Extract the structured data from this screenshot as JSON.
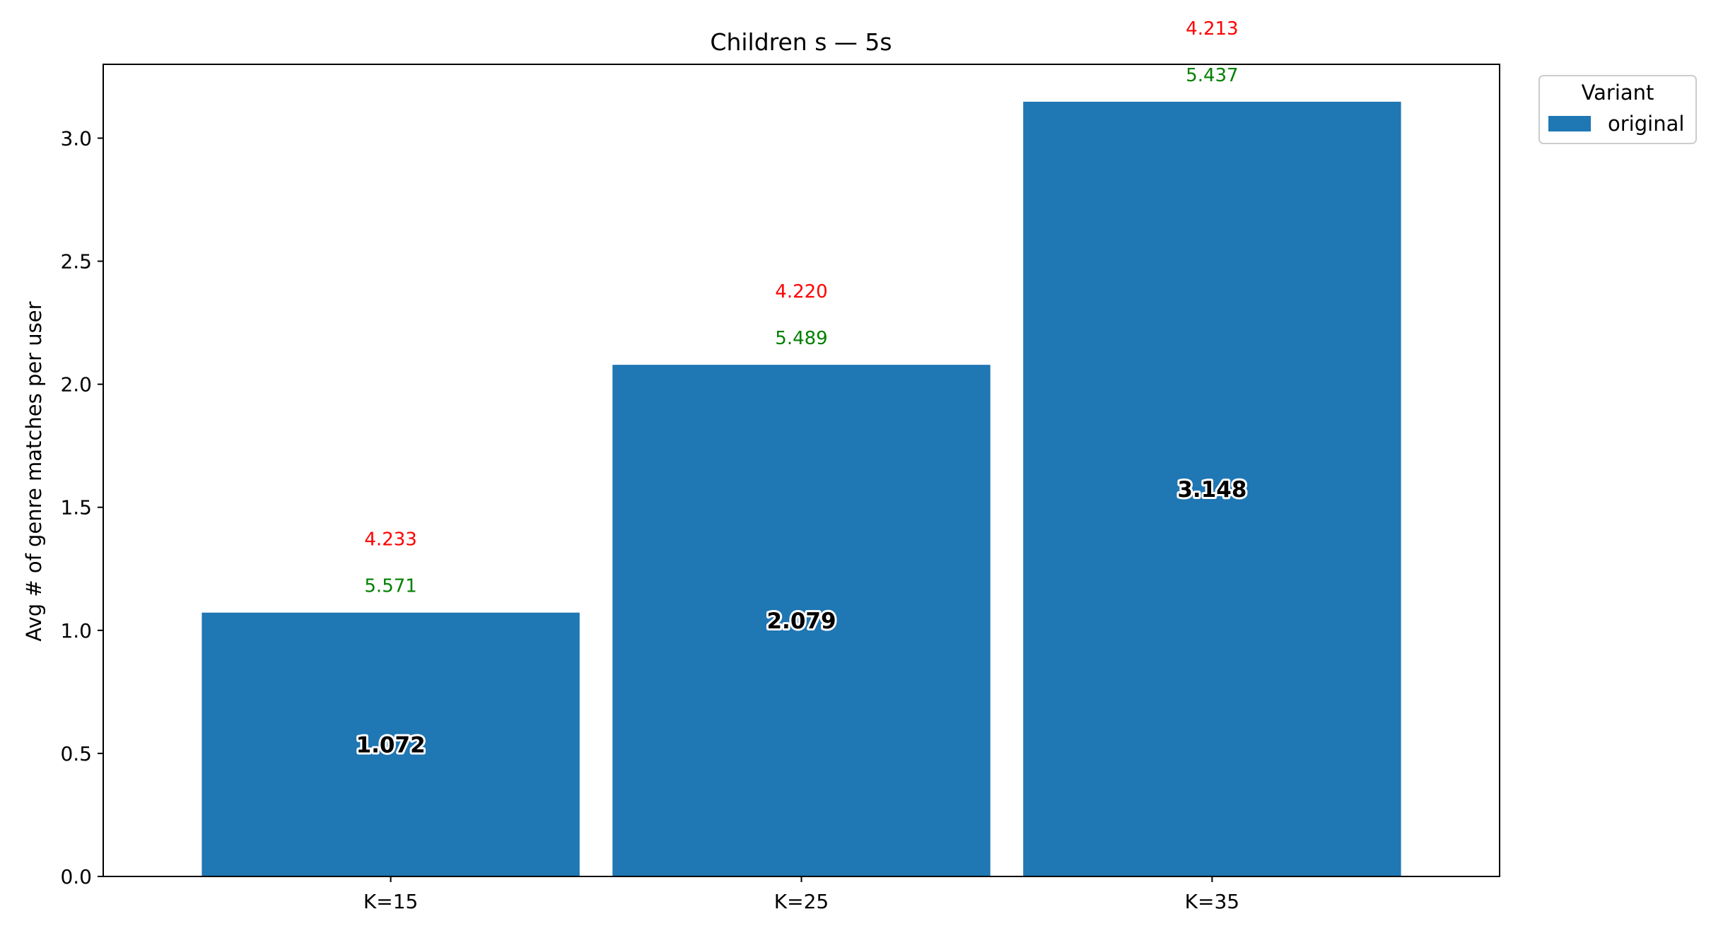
{
  "chart_data": {
    "type": "bar",
    "title": "Children s — 5s",
    "xlabel": "",
    "ylabel": "Avg # of genre matches per user",
    "categories": [
      "K=15",
      "K=25",
      "K=35"
    ],
    "series": [
      {
        "name": "original",
        "values": [
          1.072,
          2.079,
          3.148
        ],
        "value_labels": [
          "1.072",
          "2.079",
          "3.148"
        ]
      }
    ],
    "annotations": {
      "green": [
        "5.571",
        "5.489",
        "5.437"
      ],
      "red": [
        "4.233",
        "4.220",
        "4.213"
      ]
    },
    "ylim": [
      0,
      3.3
    ],
    "yticks": [
      0.0,
      0.5,
      1.0,
      1.5,
      2.0,
      2.5,
      3.0
    ],
    "ytick_labels": [
      "0.0",
      "0.5",
      "1.0",
      "1.5",
      "2.0",
      "2.5",
      "3.0"
    ],
    "legend": {
      "title": "Variant",
      "placement": "outside-top-right"
    },
    "grid": false,
    "colors": {
      "bar": "#1f77b4",
      "green_annotation": "#008000",
      "red_annotation": "#ff0000"
    }
  }
}
